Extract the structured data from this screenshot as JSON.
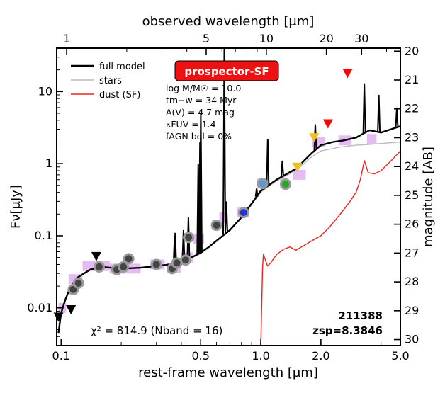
{
  "chart_data": {
    "type": "line",
    "title": "",
    "xlabel": "rest-frame wavelength [μm]",
    "x2label": "observed wavelength [μm]",
    "ylabel": "Fν[μJy]",
    "y2label": "magnitude [AB]",
    "xscale": "log",
    "yscale": "log",
    "xlim": [
      0.095,
      5.0
    ],
    "ylim": [
      0.003,
      40
    ],
    "x_ticks": [
      {
        "value": 0.1,
        "label": "0.1"
      },
      {
        "value": 0.5,
        "label": "0.5"
      },
      {
        "value": 1.0,
        "label": "1.0"
      },
      {
        "value": 2.0,
        "label": "2.0"
      },
      {
        "value": 5.0,
        "label": "5.0"
      }
    ],
    "y_ticks": [
      {
        "value": 0.01,
        "label": "0.01"
      },
      {
        "value": 0.1,
        "label": "0.1"
      },
      {
        "value": 1,
        "label": "1"
      },
      {
        "value": 10,
        "label": "10"
      }
    ],
    "top_ticks": [
      {
        "obs": 1,
        "label": "1"
      },
      {
        "obs": 5,
        "label": "5"
      },
      {
        "obs": 10,
        "label": "10"
      },
      {
        "obs": 20,
        "label": "20"
      },
      {
        "obs": 30,
        "label": "30"
      }
    ],
    "mag_ticks": [
      {
        "mag": 20,
        "label": "20"
      },
      {
        "mag": 21,
        "label": "21"
      },
      {
        "mag": 22,
        "label": "22"
      },
      {
        "mag": 23,
        "label": "23"
      },
      {
        "mag": 24,
        "label": "24"
      },
      {
        "mag": 25,
        "label": "25"
      },
      {
        "mag": 26,
        "label": "26"
      },
      {
        "mag": 27,
        "label": "27"
      },
      {
        "mag": 28,
        "label": "28"
      },
      {
        "mag": 29,
        "label": "29"
      },
      {
        "mag": 30,
        "label": "30"
      }
    ],
    "redshift": 8.3846,
    "legend": {
      "placement": "top-left",
      "entries": [
        {
          "name": "full model",
          "color": "#000000"
        },
        {
          "name": "stars",
          "color": "#bbbbbb"
        },
        {
          "name": "dust (SF)",
          "color": "#ee2222"
        }
      ]
    },
    "badge": {
      "text": "prospector-SF",
      "color": "#ee1111"
    },
    "params": [
      "log M/M☉ = 10.0",
      "tm−w = 34 Myr",
      "A(V) = 4.7 mag",
      "κFUV = 1.4",
      "fAGN bol = 0%"
    ],
    "chi2_text": "χ² = 814.9 (Nband = 16)",
    "object_id": "211388",
    "zsp_text": "zsp=8.3846",
    "series": [
      {
        "name": "full model",
        "color": "#000000",
        "points": [
          [
            0.097,
            0.0045
          ],
          [
            0.1,
            0.0085
          ],
          [
            0.105,
            0.013
          ],
          [
            0.11,
            0.018
          ],
          [
            0.115,
            0.022
          ],
          [
            0.12,
            0.026
          ],
          [
            0.13,
            0.03
          ],
          [
            0.14,
            0.034
          ],
          [
            0.16,
            0.037
          ],
          [
            0.2,
            0.035
          ],
          [
            0.25,
            0.036
          ],
          [
            0.3,
            0.038
          ],
          [
            0.35,
            0.04
          ],
          [
            0.4,
            0.043
          ],
          [
            0.45,
            0.05
          ],
          [
            0.5,
            0.058
          ],
          [
            0.55,
            0.07
          ],
          [
            0.6,
            0.085
          ],
          [
            0.7,
            0.12
          ],
          [
            0.8,
            0.18
          ],
          [
            0.9,
            0.28
          ],
          [
            1.0,
            0.42
          ],
          [
            1.2,
            0.6
          ],
          [
            1.5,
            0.85
          ],
          [
            1.8,
            1.4
          ],
          [
            2.0,
            1.8
          ],
          [
            2.3,
            2.0
          ],
          [
            2.6,
            2.1
          ],
          [
            3.0,
            2.3
          ],
          [
            3.5,
            2.9
          ],
          [
            4.0,
            2.7
          ],
          [
            4.5,
            3.0
          ],
          [
            5.0,
            3.3
          ]
        ]
      },
      {
        "name": "stars",
        "color": "#bbbbbb",
        "points": [
          [
            0.097,
            0.0045
          ],
          [
            0.1,
            0.0085
          ],
          [
            0.105,
            0.013
          ],
          [
            0.11,
            0.018
          ],
          [
            0.12,
            0.026
          ],
          [
            0.14,
            0.034
          ],
          [
            0.16,
            0.037
          ],
          [
            0.2,
            0.035
          ],
          [
            0.25,
            0.036
          ],
          [
            0.3,
            0.038
          ],
          [
            0.4,
            0.043
          ],
          [
            0.5,
            0.058
          ],
          [
            0.6,
            0.085
          ],
          [
            0.7,
            0.12
          ],
          [
            0.8,
            0.18
          ],
          [
            0.9,
            0.27
          ],
          [
            1.0,
            0.4
          ],
          [
            1.2,
            0.58
          ],
          [
            1.5,
            0.8
          ],
          [
            1.8,
            1.25
          ],
          [
            2.0,
            1.5
          ],
          [
            2.5,
            1.7
          ],
          [
            3.0,
            1.8
          ],
          [
            3.5,
            1.85
          ],
          [
            4.0,
            1.9
          ],
          [
            4.5,
            1.95
          ],
          [
            5.0,
            2.0
          ]
        ]
      },
      {
        "name": "dust (SF)",
        "color": "#ee2222",
        "points": [
          [
            1.0,
            0.003
          ],
          [
            1.01,
            0.01
          ],
          [
            1.02,
            0.035
          ],
          [
            1.03,
            0.055
          ],
          [
            1.05,
            0.048
          ],
          [
            1.08,
            0.038
          ],
          [
            1.12,
            0.042
          ],
          [
            1.2,
            0.055
          ],
          [
            1.3,
            0.065
          ],
          [
            1.4,
            0.07
          ],
          [
            1.5,
            0.063
          ],
          [
            1.6,
            0.07
          ],
          [
            1.8,
            0.085
          ],
          [
            2.0,
            0.1
          ],
          [
            2.2,
            0.13
          ],
          [
            2.5,
            0.2
          ],
          [
            2.8,
            0.3
          ],
          [
            3.0,
            0.4
          ],
          [
            3.15,
            0.6
          ],
          [
            3.25,
            0.9
          ],
          [
            3.3,
            1.1
          ],
          [
            3.45,
            0.75
          ],
          [
            3.7,
            0.72
          ],
          [
            4.0,
            0.8
          ],
          [
            4.5,
            1.1
          ],
          [
            5.0,
            1.5
          ]
        ]
      }
    ],
    "emission_lines": [
      {
        "x": 0.37,
        "peak": 0.1
      },
      {
        "x": 0.3727,
        "peak": 0.11
      },
      {
        "x": 0.41,
        "peak": 0.12
      },
      {
        "x": 0.434,
        "peak": 0.18
      },
      {
        "x": 0.4861,
        "peak": 1.0
      },
      {
        "x": 0.4959,
        "peak": 2.0
      },
      {
        "x": 0.5007,
        "peak": 5.0
      },
      {
        "x": 0.6563,
        "peak": 40.0
      },
      {
        "x": 0.6725,
        "peak": 0.3
      },
      {
        "x": 0.9532,
        "peak": 0.45
      },
      {
        "x": 1.0833,
        "peak": 2.2
      },
      {
        "x": 1.282,
        "peak": 1.1
      },
      {
        "x": 1.875,
        "peak": 3.5
      },
      {
        "x": 3.3,
        "peak": 13.0
      },
      {
        "x": 3.9,
        "peak": 9.0
      },
      {
        "x": 4.8,
        "peak": 6.0
      }
    ],
    "model_points": [
      {
        "x": 0.115,
        "y": 0.018
      },
      {
        "x": 0.122,
        "y": 0.022
      },
      {
        "x": 0.155,
        "y": 0.037
      },
      {
        "x": 0.19,
        "y": 0.034
      },
      {
        "x": 0.205,
        "y": 0.037
      },
      {
        "x": 0.218,
        "y": 0.048
      },
      {
        "x": 0.3,
        "y": 0.04
      },
      {
        "x": 0.36,
        "y": 0.035
      },
      {
        "x": 0.38,
        "y": 0.042
      },
      {
        "x": 0.42,
        "y": 0.046
      },
      {
        "x": 0.435,
        "y": 0.095
      },
      {
        "x": 0.6,
        "y": 0.14
      }
    ],
    "filter_bars": [
      {
        "x0": 0.097,
        "x1": 0.106,
        "y": 0.01,
        "color": "#e0b0f0"
      },
      {
        "x0": 0.109,
        "x1": 0.128,
        "y": 0.025,
        "color": "#e0b0f0"
      },
      {
        "x0": 0.128,
        "x1": 0.175,
        "y": 0.038,
        "color": "#e0b0f0"
      },
      {
        "x0": 0.175,
        "x1": 0.25,
        "y": 0.035,
        "color": "#e0b0f0"
      },
      {
        "x0": 0.28,
        "x1": 0.33,
        "y": 0.04,
        "color": "#e0b0f0"
      },
      {
        "x0": 0.34,
        "x1": 0.4,
        "y": 0.036,
        "color": "#e0b0f0"
      },
      {
        "x0": 0.4,
        "x1": 0.46,
        "y": 0.05,
        "color": "#e0b0f0"
      },
      {
        "x0": 0.46,
        "x1": 0.52,
        "y": 0.09,
        "color": "#e0b0f0"
      },
      {
        "x0": 0.57,
        "x1": 0.62,
        "y": 0.14,
        "color": "#e0b0f0"
      },
      {
        "x0": 0.62,
        "x1": 0.66,
        "y": 0.18,
        "color": "#e0b0f0"
      },
      {
        "x0": 0.76,
        "x1": 0.87,
        "y": 0.21,
        "color": "#e0b0f0"
      },
      {
        "x0": 0.96,
        "x1": 1.06,
        "y": 0.53,
        "color": "#e0b0f0"
      },
      {
        "x0": 1.25,
        "x1": 1.38,
        "y": 0.53,
        "color": "#e0b0f0"
      },
      {
        "x0": 1.45,
        "x1": 1.68,
        "y": 0.7,
        "color": "#e0b0f0"
      },
      {
        "x0": 1.8,
        "x1": 2.1,
        "y": 2.0,
        "color": "#e0b0f0"
      },
      {
        "x0": 2.45,
        "x1": 2.85,
        "y": 2.1,
        "color": "#e0b0f0"
      },
      {
        "x0": 3.4,
        "x1": 3.8,
        "y": 2.2,
        "color": "#e0b0f0"
      }
    ],
    "detections": [
      {
        "x": 0.82,
        "y": 0.21,
        "color": "#2233dd"
      },
      {
        "x": 1.02,
        "y": 0.53,
        "color": "#5599dd"
      },
      {
        "x": 1.33,
        "y": 0.52,
        "color": "#22aa22"
      }
    ],
    "upper_limits": [
      {
        "x": 0.097,
        "y": 0.0075,
        "color": "#000000"
      },
      {
        "x": 0.112,
        "y": 0.0095,
        "color": "#000000"
      },
      {
        "x": 0.15,
        "y": 0.052,
        "color": "#000000"
      },
      {
        "x": 1.52,
        "y": 0.9,
        "color": "#f0c020"
      },
      {
        "x": 1.85,
        "y": 2.3,
        "color": "#f0c020"
      },
      {
        "x": 2.17,
        "y": 3.6,
        "color": "#ff0000"
      },
      {
        "x": 2.72,
        "y": 18.0,
        "color": "#ff0000"
      }
    ]
  }
}
